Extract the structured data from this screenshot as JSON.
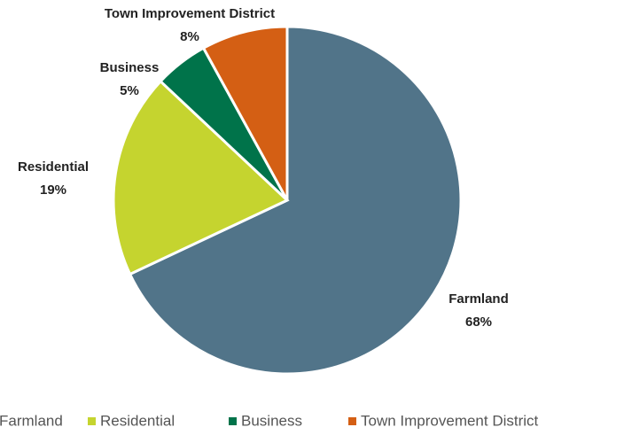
{
  "chart_data": {
    "type": "pie",
    "categories": [
      "Farmland",
      "Residential",
      "Business",
      "Town Improvement District"
    ],
    "values": [
      68,
      19,
      5,
      8
    ],
    "value_labels": [
      "68%",
      "19%",
      "5%",
      "8%"
    ],
    "colors": [
      "#517489",
      "#c5d42f",
      "#00734a",
      "#d45f14"
    ],
    "legend": "bottom"
  }
}
